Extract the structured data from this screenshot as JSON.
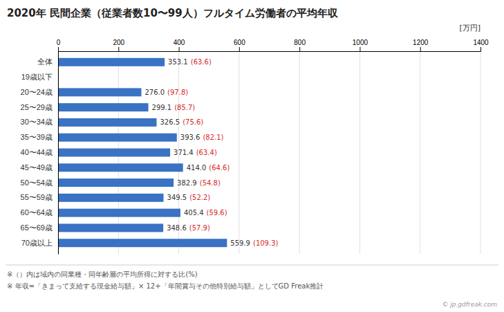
{
  "chart_data": {
    "type": "bar",
    "orientation": "horizontal",
    "title": "2020年 民間企業（従業者数10〜99人）フルタイム労働者の平均年収",
    "xlabel": "[万円]",
    "categories": [
      "全体",
      "19歳以下",
      "20〜24歳",
      "25〜29歳",
      "30〜34歳",
      "35〜39歳",
      "40〜44歳",
      "45〜49歳",
      "50〜54歳",
      "55〜59歳",
      "60〜64歳",
      "65〜69歳",
      "70歳以上"
    ],
    "values": [
      353.1,
      0,
      276.0,
      299.1,
      326.5,
      393.6,
      371.4,
      414.0,
      382.9,
      349.5,
      405.4,
      348.6,
      559.9
    ],
    "value_labels": [
      "353.1",
      null,
      "276.0",
      "299.1",
      "326.5",
      "393.6",
      "371.4",
      "414.0",
      "382.9",
      "349.5",
      "405.4",
      "348.6",
      "559.9"
    ],
    "ratio_labels": [
      "(63.6)",
      null,
      "(97.8)",
      "(85.7)",
      "(75.6)",
      "(82.1)",
      "(63.4)",
      "(64.6)",
      "(54.8)",
      "(52.2)",
      "(59.6)",
      "(57.9)",
      "(109.3)"
    ],
    "data_labels": true,
    "color": "#3a72c4",
    "xlim": [
      0,
      1400
    ],
    "xticks": [
      0,
      200,
      400,
      600,
      800,
      1000,
      1200,
      1400
    ],
    "grid": true,
    "notes": [
      "※（）内は域内の同業種・同年齢層の平均所得に対する比(%)",
      "※ 年収=「きまって支給する現金給与額」× 12+「年間賞与その他特別給与額」としてGD Freak推計"
    ],
    "credit": "© jp.gdfreak.com"
  }
}
